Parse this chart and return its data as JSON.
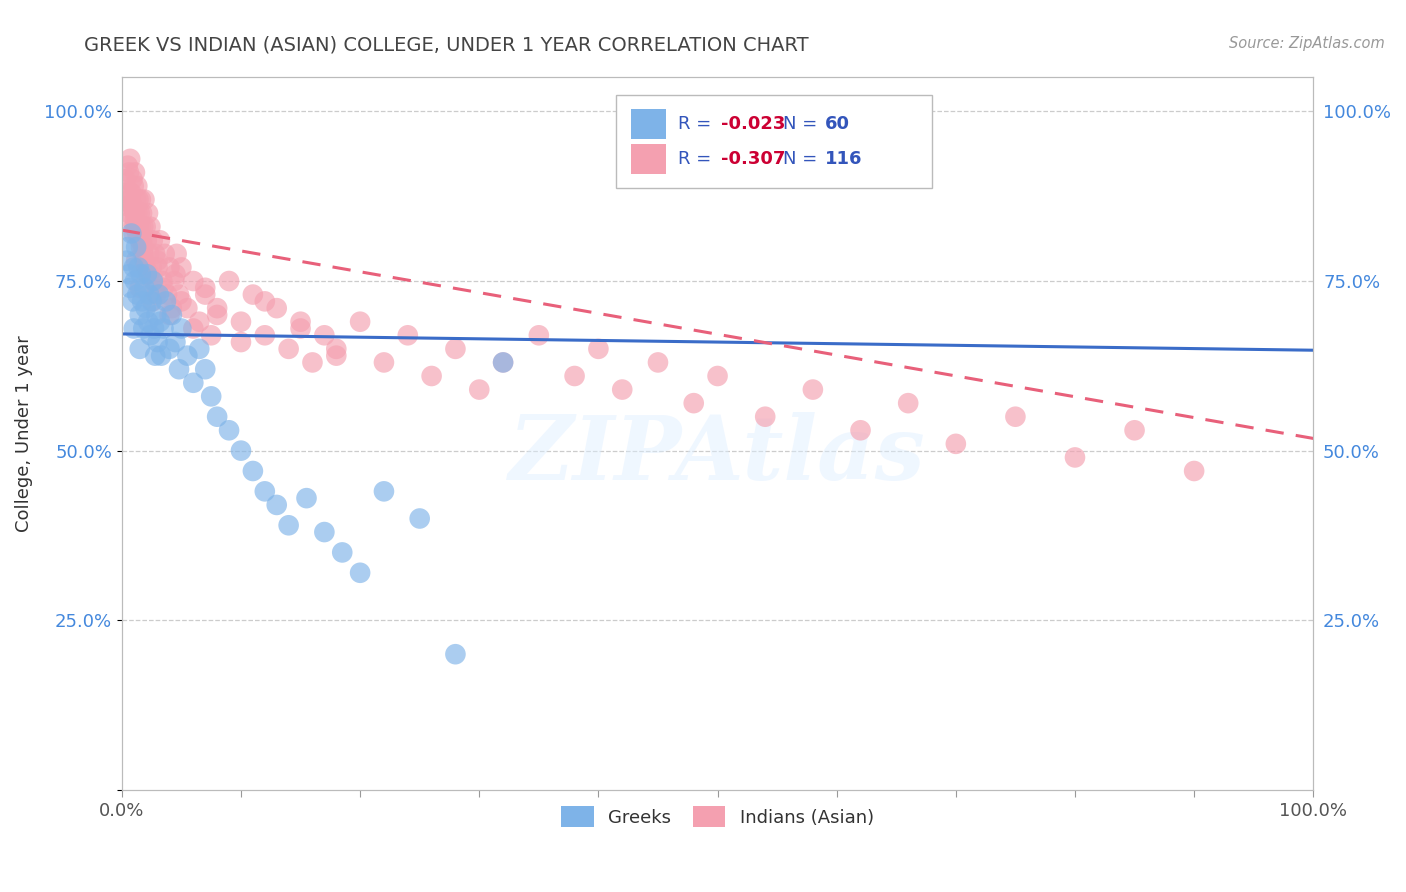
{
  "title": "GREEK VS INDIAN (ASIAN) COLLEGE, UNDER 1 YEAR CORRELATION CHART",
  "source": "Source: ZipAtlas.com",
  "ylabel": "College, Under 1 year",
  "watermark": "ZIPAtlas",
  "greek_R": -0.023,
  "greek_N": 60,
  "indian_R": -0.307,
  "indian_N": 116,
  "greek_color": "#7EB3E8",
  "indian_color": "#F4A0B0",
  "greek_line_color": "#3A6CC8",
  "indian_line_color": "#E8607A",
  "R_color": "#CC0033",
  "N_color": "#3355BB",
  "title_color": "#444444",
  "legend_text_color": "#3355BB",
  "greek_line_x": [
    0.0,
    1.0
  ],
  "greek_line_y": [
    0.672,
    0.648
  ],
  "indian_line_x": [
    0.0,
    1.0
  ],
  "indian_line_y": [
    0.825,
    0.518
  ],
  "xlim": [
    0.0,
    1.0
  ],
  "ylim": [
    0.0,
    1.05
  ],
  "xtick_positions": [
    0.0,
    0.1,
    0.2,
    0.3,
    0.4,
    0.5,
    0.6,
    0.7,
    0.8,
    0.9,
    1.0
  ],
  "ytick_positions": [
    0.0,
    0.25,
    0.5,
    0.75,
    1.0
  ],
  "ytick_labels": [
    "",
    "25.0%",
    "50.0%",
    "75.0%",
    "100.0%"
  ],
  "greek_x": [
    0.004,
    0.005,
    0.006,
    0.007,
    0.008,
    0.009,
    0.01,
    0.01,
    0.011,
    0.012,
    0.013,
    0.014,
    0.015,
    0.015,
    0.016,
    0.017,
    0.018,
    0.019,
    0.02,
    0.021,
    0.022,
    0.023,
    0.024,
    0.025,
    0.026,
    0.027,
    0.028,
    0.029,
    0.03,
    0.031,
    0.032,
    0.033,
    0.035,
    0.037,
    0.04,
    0.042,
    0.045,
    0.048,
    0.05,
    0.055,
    0.06,
    0.065,
    0.07,
    0.075,
    0.08,
    0.09,
    0.1,
    0.11,
    0.12,
    0.13,
    0.14,
    0.155,
    0.17,
    0.185,
    0.2,
    0.22,
    0.25,
    0.28,
    0.32,
    0.5
  ],
  "greek_y": [
    0.78,
    0.8,
    0.76,
    0.74,
    0.82,
    0.72,
    0.77,
    0.68,
    0.75,
    0.8,
    0.73,
    0.77,
    0.7,
    0.65,
    0.76,
    0.72,
    0.68,
    0.74,
    0.71,
    0.76,
    0.69,
    0.73,
    0.67,
    0.72,
    0.75,
    0.68,
    0.64,
    0.7,
    0.66,
    0.73,
    0.69,
    0.64,
    0.68,
    0.72,
    0.65,
    0.7,
    0.66,
    0.62,
    0.68,
    0.64,
    0.6,
    0.65,
    0.62,
    0.58,
    0.55,
    0.53,
    0.5,
    0.47,
    0.44,
    0.42,
    0.39,
    0.43,
    0.38,
    0.35,
    0.32,
    0.44,
    0.4,
    0.2,
    0.63,
    0.99
  ],
  "indian_x": [
    0.003,
    0.004,
    0.005,
    0.005,
    0.006,
    0.006,
    0.007,
    0.007,
    0.008,
    0.008,
    0.009,
    0.009,
    0.01,
    0.01,
    0.011,
    0.011,
    0.012,
    0.012,
    0.013,
    0.013,
    0.014,
    0.014,
    0.015,
    0.015,
    0.016,
    0.016,
    0.017,
    0.017,
    0.018,
    0.018,
    0.019,
    0.02,
    0.02,
    0.021,
    0.022,
    0.023,
    0.024,
    0.025,
    0.026,
    0.027,
    0.028,
    0.029,
    0.03,
    0.032,
    0.034,
    0.036,
    0.038,
    0.04,
    0.042,
    0.044,
    0.046,
    0.048,
    0.05,
    0.055,
    0.06,
    0.065,
    0.07,
    0.075,
    0.08,
    0.09,
    0.1,
    0.11,
    0.12,
    0.13,
    0.14,
    0.15,
    0.16,
    0.17,
    0.18,
    0.2,
    0.22,
    0.24,
    0.26,
    0.28,
    0.3,
    0.32,
    0.35,
    0.38,
    0.4,
    0.42,
    0.45,
    0.48,
    0.5,
    0.54,
    0.58,
    0.62,
    0.66,
    0.7,
    0.75,
    0.8,
    0.85,
    0.9,
    0.01,
    0.012,
    0.015,
    0.018,
    0.022,
    0.026,
    0.03,
    0.035,
    0.04,
    0.045,
    0.05,
    0.06,
    0.07,
    0.08,
    0.1,
    0.12,
    0.15,
    0.18,
    0.007,
    0.009,
    0.011,
    0.013,
    0.016,
    0.019,
    0.023
  ],
  "indian_y": [
    0.9,
    0.88,
    0.92,
    0.86,
    0.91,
    0.85,
    0.93,
    0.87,
    0.88,
    0.84,
    0.9,
    0.86,
    0.89,
    0.83,
    0.91,
    0.85,
    0.87,
    0.83,
    0.89,
    0.85,
    0.83,
    0.87,
    0.81,
    0.85,
    0.83,
    0.87,
    0.81,
    0.85,
    0.79,
    0.83,
    0.87,
    0.83,
    0.77,
    0.81,
    0.85,
    0.79,
    0.83,
    0.77,
    0.81,
    0.75,
    0.79,
    0.73,
    0.77,
    0.81,
    0.75,
    0.79,
    0.73,
    0.77,
    0.71,
    0.75,
    0.79,
    0.73,
    0.77,
    0.71,
    0.75,
    0.69,
    0.73,
    0.67,
    0.71,
    0.75,
    0.69,
    0.73,
    0.67,
    0.71,
    0.65,
    0.69,
    0.63,
    0.67,
    0.65,
    0.69,
    0.63,
    0.67,
    0.61,
    0.65,
    0.59,
    0.63,
    0.67,
    0.61,
    0.65,
    0.59,
    0.63,
    0.57,
    0.61,
    0.55,
    0.59,
    0.53,
    0.57,
    0.51,
    0.55,
    0.49,
    0.53,
    0.47,
    0.82,
    0.78,
    0.74,
    0.8,
    0.76,
    0.72,
    0.78,
    0.74,
    0.7,
    0.76,
    0.72,
    0.68,
    0.74,
    0.7,
    0.66,
    0.72,
    0.68,
    0.64,
    0.88,
    0.86,
    0.84,
    0.82,
    0.8,
    0.78,
    0.76
  ]
}
